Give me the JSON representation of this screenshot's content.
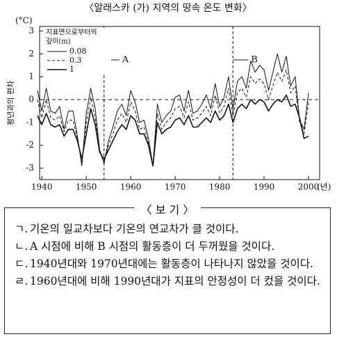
{
  "chart_data": {
    "type": "line",
    "title": "〈알래스카 (가) 지역의 땅속 온도 변화〉",
    "y_unit": "(°C)",
    "ylabel": "평년과의 편차",
    "x_unit": "(년)",
    "x": [
      1939,
      1940,
      1941,
      1942,
      1943,
      1944,
      1945,
      1946,
      1947,
      1948,
      1949,
      1950,
      1951,
      1952,
      1953,
      1954,
      1955,
      1956,
      1957,
      1958,
      1959,
      1960,
      1961,
      1962,
      1963,
      1964,
      1965,
      1966,
      1967,
      1968,
      1969,
      1970,
      1971,
      1972,
      1973,
      1974,
      1975,
      1976,
      1977,
      1978,
      1979,
      1980,
      1981,
      1982,
      1983,
      1984,
      1985,
      1986,
      1987,
      1988,
      1989,
      1990,
      1991,
      1992,
      1993,
      1994,
      1995,
      1996,
      1997,
      1998,
      1999,
      2000
    ],
    "xlim": [
      1939.5,
      2002.5
    ],
    "xticks": [
      1940,
      1950,
      1960,
      1970,
      1980,
      1990,
      2000
    ],
    "ylim": [
      -3.5,
      3.2
    ],
    "yticks": [
      -3,
      -2,
      -1,
      0,
      1,
      2,
      3
    ],
    "zero_line": true,
    "legend_title": [
      "지표면으로부터의",
      "깊이(m)"
    ],
    "series": [
      {
        "name": "0.08",
        "color": "#111111",
        "width": 1,
        "dash": "none",
        "values": [
          0.4,
          -0.5,
          0.5,
          -0.5,
          -0.6,
          -0.3,
          -1.3,
          -0.5,
          -0.5,
          -1.6,
          -2.9,
          -0.6,
          0.5,
          -0.4,
          -2.2,
          -2.8,
          -1.8,
          -1.2,
          -0.5,
          -0.2,
          -0.7,
          0.4,
          -0.1,
          -1.0,
          -0.9,
          -1.7,
          -2.9,
          -0.2,
          -1.0,
          -0.7,
          -0.5,
          0.1,
          0.2,
          -0.5,
          0.4,
          -0.6,
          -0.5,
          -0.2,
          0.2,
          -0.4,
          0.7,
          -0.3,
          0.1,
          1.0,
          -0.4,
          0.8,
          1.0,
          0.5,
          1.7,
          1.2,
          1.5,
          1.3,
          0.4,
          1.2,
          2.0,
          1.2,
          1.9,
          0.6,
          1.0,
          -0.9,
          -1.3,
          0.3
        ]
      },
      {
        "name": "0.3",
        "color": "#111111",
        "width": 1,
        "dash": "4,3",
        "values": [
          0.0,
          -0.8,
          0.0,
          -0.8,
          -0.9,
          -0.7,
          -1.4,
          -0.9,
          -0.9,
          -1.7,
          -2.8,
          -1.0,
          0.1,
          -0.8,
          -2.3,
          -2.7,
          -2.0,
          -1.5,
          -0.9,
          -0.6,
          -1.0,
          -0.1,
          -0.5,
          -1.3,
          -1.2,
          -1.9,
          -2.9,
          -0.6,
          -1.3,
          -1.0,
          -0.8,
          -0.4,
          -0.3,
          -0.8,
          -0.1,
          -0.9,
          -0.8,
          -0.6,
          -0.3,
          -0.7,
          0.2,
          -0.6,
          -0.3,
          0.5,
          -0.7,
          0.3,
          0.5,
          0.1,
          1.0,
          0.7,
          0.9,
          0.7,
          0.0,
          0.6,
          1.2,
          0.8,
          1.3,
          0.3,
          0.6,
          -1.0,
          -1.5,
          -0.1
        ]
      },
      {
        "name": "1",
        "color": "#111111",
        "width": 1.6,
        "dash": "none",
        "values": [
          -0.7,
          -1.1,
          -0.6,
          -1.1,
          -1.2,
          -1.1,
          -1.6,
          -1.3,
          -1.3,
          -1.8,
          -2.6,
          -1.5,
          -0.4,
          -1.1,
          -2.3,
          -2.6,
          -2.2,
          -1.8,
          -1.4,
          -1.1,
          -1.3,
          -0.7,
          -0.9,
          -1.5,
          -1.5,
          -2.0,
          -2.9,
          -1.0,
          -1.5,
          -1.3,
          -1.2,
          -0.9,
          -0.8,
          -1.1,
          -0.7,
          -1.2,
          -1.2,
          -1.0,
          -0.8,
          -1.0,
          -0.5,
          -0.9,
          -0.7,
          -0.2,
          -1.0,
          -0.4,
          -0.2,
          -0.4,
          0.0,
          -0.2,
          0.0,
          -0.1,
          -0.5,
          -0.2,
          0.0,
          -0.1,
          0.2,
          -0.3,
          -0.2,
          -0.8,
          -1.7,
          -1.6
        ]
      }
    ],
    "annotations": [
      {
        "text": "A",
        "x": 1954
      },
      {
        "text": "B",
        "x": 1983
      }
    ]
  },
  "box": {
    "title": "〈 보 기 〉",
    "items": [
      {
        "label": "ㄱ.",
        "text": "기온의 일교차보다 기온의 연교차가 클 것이다."
      },
      {
        "label": "ㄴ.",
        "text": "A 시점에 비해 B 시점의 활동층이 더 두꺼웠을 것이다."
      },
      {
        "label": "ㄷ.",
        "text": "1940년대와 1970년대에는 활동층이 나타나지 않았을 것이다."
      },
      {
        "label": "ㄹ.",
        "text": "1960년대에 비해 1990년대가 지표의 안정성이 더 컸을 것이다."
      }
    ]
  }
}
